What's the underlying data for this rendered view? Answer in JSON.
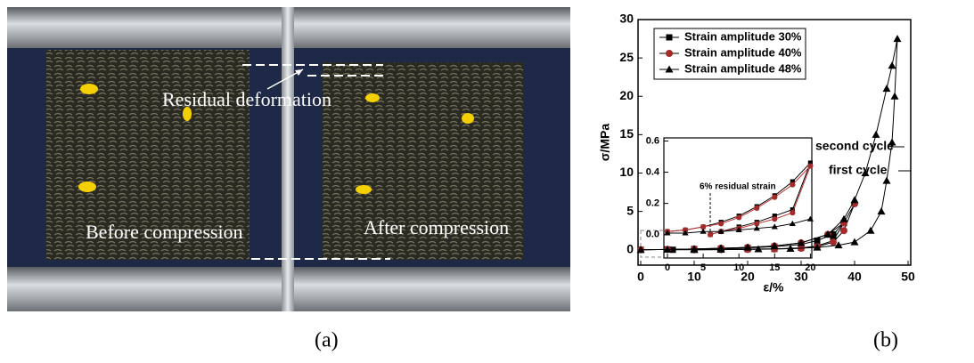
{
  "photo": {
    "annotations": [
      "Residual deformation",
      "Before compression",
      "After compression"
    ]
  },
  "panel_labels": [
    "(a)",
    "(b)"
  ],
  "chart_data": [
    {
      "type": "line",
      "x_label": "ε/%",
      "y_label": "σ/MPa",
      "xlim": [
        -0.5,
        50.5
      ],
      "ylim": [
        -2,
        30
      ],
      "xticks": [
        0,
        10,
        20,
        30,
        40,
        50
      ],
      "yticks": [
        0,
        5,
        10,
        15,
        20,
        25,
        30
      ],
      "legend": "upper left",
      "annotations": [
        "second cycle",
        "first cycle"
      ],
      "series": [
        {
          "name": "Strain amplitude 30%",
          "color": "#000000",
          "marker": "square",
          "marker_color": "#000000",
          "x": [
            0,
            5,
            10,
            15,
            20,
            25,
            30,
            33,
            36,
            38,
            36,
            33,
            30,
            25,
            20,
            15,
            10,
            6
          ],
          "values": [
            0,
            0.05,
            0.1,
            0.15,
            0.25,
            0.4,
            0.7,
            1.2,
            2,
            3.5,
            1.2,
            0.5,
            0.25,
            0.12,
            0.08,
            0.05,
            0.02,
            0
          ]
        },
        {
          "name": "Strain amplitude 40%",
          "color": "#000000",
          "marker": "circle",
          "marker_color": "#a52a2a",
          "x": [
            0,
            5,
            10,
            15,
            20,
            25,
            30,
            35,
            38,
            40,
            38,
            36,
            33,
            30,
            25,
            20,
            15,
            10
          ],
          "values": [
            0,
            0.05,
            0.1,
            0.2,
            0.3,
            0.5,
            0.9,
            2,
            3.5,
            6,
            2.5,
            1,
            0.4,
            0.2,
            0.1,
            0.05,
            0.02,
            0
          ]
        },
        {
          "name": "Strain amplitude 48%",
          "color": "#000000",
          "marker": "triangle",
          "marker_color": "#000000",
          "x": [
            0,
            5,
            10,
            15,
            20,
            25,
            30,
            35,
            38,
            40,
            42,
            44,
            46,
            47,
            48,
            47.5,
            47,
            46,
            45,
            43,
            40,
            37,
            33,
            28,
            22,
            15,
            10
          ],
          "values": [
            0,
            0.05,
            0.1,
            0.2,
            0.3,
            0.5,
            0.9,
            2,
            4,
            6.5,
            10,
            15,
            21,
            24,
            27.5,
            20,
            14,
            9,
            5,
            2.5,
            1,
            0.6,
            0.3,
            0.15,
            0.08,
            0.03,
            0
          ]
        }
      ]
    },
    {
      "type": "line",
      "xlim": [
        -0.5,
        20.2
      ],
      "ylim": [
        -0.15,
        0.62
      ],
      "xticks": [
        0,
        5,
        10,
        15,
        20
      ],
      "yticks": [
        {
          "value": 0,
          "label": "0.0"
        },
        {
          "value": 0.2,
          "label": "0.2"
        },
        {
          "value": 0.4,
          "label": "0.4"
        },
        {
          "value": 0.6,
          "label": "0.6"
        }
      ],
      "annotations": [
        "6% residual strain"
      ],
      "series": [
        {
          "color": "#000000",
          "marker": "square",
          "marker_color": "#000000",
          "x": [
            0,
            2.5,
            5,
            7.5,
            10,
            12.5,
            15,
            17.5,
            20,
            17.5,
            15,
            12.5,
            10,
            7.5,
            6
          ],
          "values": [
            0.02,
            0.03,
            0.05,
            0.08,
            0.12,
            0.18,
            0.25,
            0.34,
            0.46,
            0.16,
            0.12,
            0.08,
            0.05,
            0.02,
            0
          ]
        },
        {
          "color": "#c03030",
          "marker": "circle",
          "marker_color": "#a52a2a",
          "x": [
            0,
            2.5,
            5,
            7.5,
            10,
            12.5,
            15,
            17.5,
            20,
            17.5,
            15,
            12.5,
            10,
            7.5,
            6
          ],
          "values": [
            0.02,
            0.03,
            0.05,
            0.07,
            0.11,
            0.17,
            0.24,
            0.32,
            0.44,
            0.14,
            0.1,
            0.07,
            0.04,
            0.02,
            0
          ]
        },
        {
          "color": "#000000",
          "marker": "triangle",
          "marker_color": "#000000",
          "x": [
            0,
            2.5,
            5,
            7.5,
            10,
            12.5,
            15,
            17.5,
            20
          ],
          "values": [
            0.01,
            0.01,
            0.02,
            0.02,
            0.03,
            0.04,
            0.05,
            0.07,
            0.1
          ]
        }
      ]
    }
  ]
}
